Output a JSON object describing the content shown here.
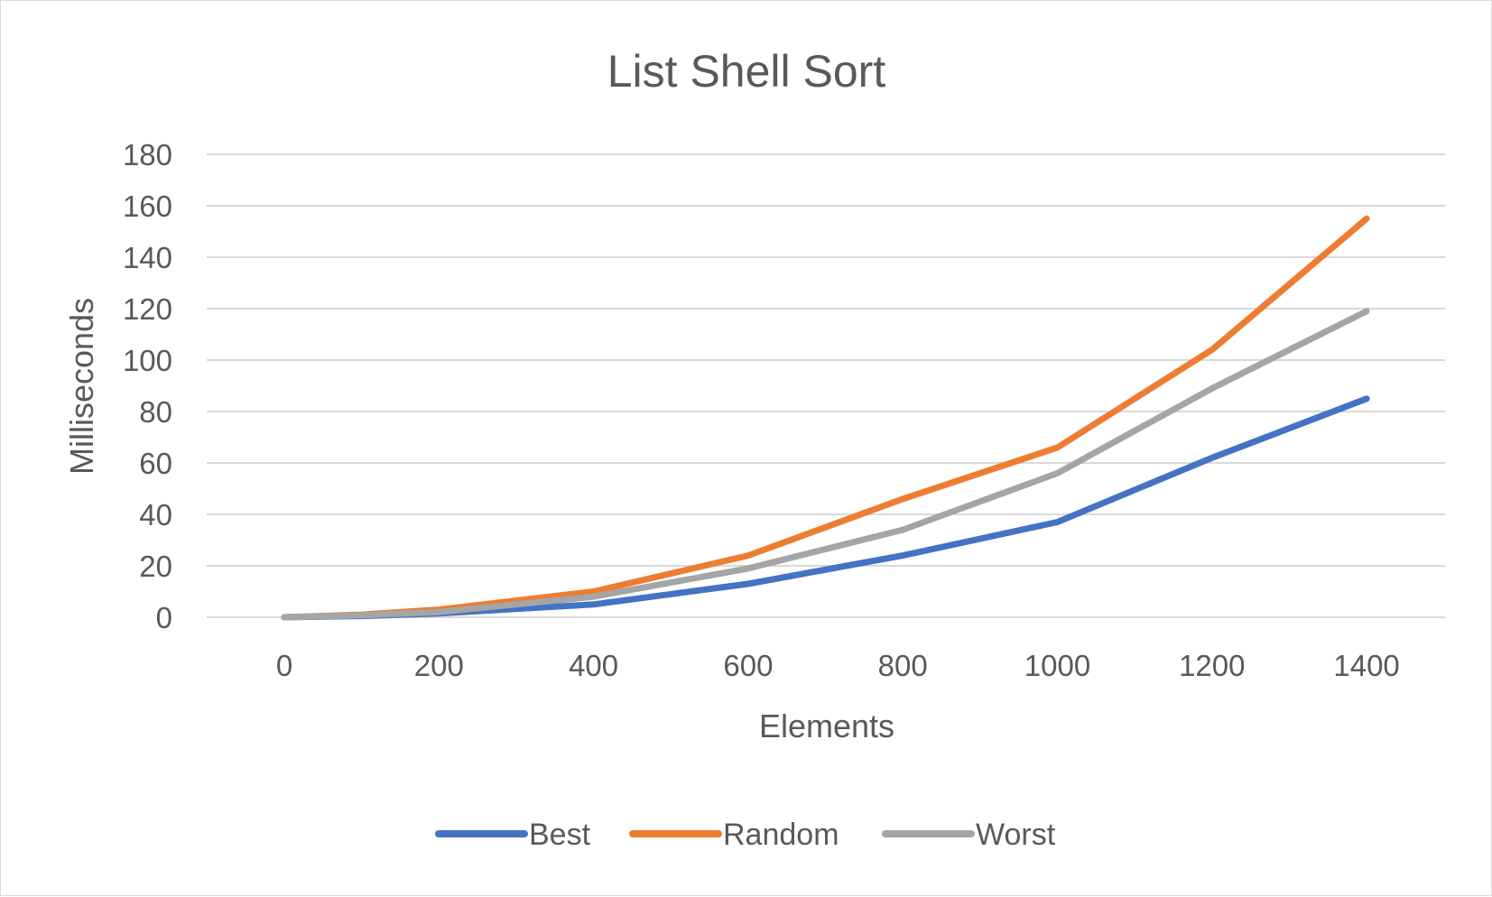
{
  "chart_data": {
    "type": "line",
    "title": "List Shell Sort",
    "xlabel": "Elements",
    "ylabel": "Milliseconds",
    "x": [
      0,
      100,
      200,
      400,
      600,
      800,
      1000,
      1200,
      1400
    ],
    "xticks": [
      0,
      200,
      400,
      600,
      800,
      1000,
      1200,
      1400
    ],
    "yticks": [
      0,
      20,
      40,
      60,
      80,
      100,
      120,
      140,
      160,
      180
    ],
    "xlim": [
      -100,
      1400
    ],
    "ylim": [
      0,
      180
    ],
    "grid": "horizontal",
    "legend_position": "bottom",
    "series": [
      {
        "name": "Best",
        "color": "#4472c4",
        "values": [
          0,
          0.5,
          1.5,
          5,
          13,
          24,
          37,
          62,
          85
        ]
      },
      {
        "name": "Random",
        "color": "#ed7d31",
        "values": [
          0,
          1,
          3,
          10,
          24,
          46,
          66,
          104,
          155
        ]
      },
      {
        "name": "Worst",
        "color": "#a5a5a5",
        "values": [
          0,
          0.8,
          2,
          8,
          19,
          34,
          56,
          89,
          119
        ]
      }
    ]
  }
}
